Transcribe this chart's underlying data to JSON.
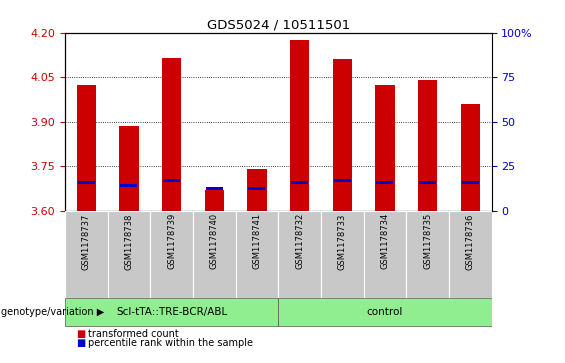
{
  "title": "GDS5024 / 10511501",
  "samples": [
    "GSM1178737",
    "GSM1178738",
    "GSM1178739",
    "GSM1178740",
    "GSM1178741",
    "GSM1178732",
    "GSM1178733",
    "GSM1178734",
    "GSM1178735",
    "GSM1178736"
  ],
  "red_values": [
    4.025,
    3.885,
    4.115,
    3.67,
    3.74,
    4.175,
    4.11,
    4.025,
    4.04,
    3.96
  ],
  "blue_values": [
    3.695,
    3.685,
    3.7,
    3.675,
    3.675,
    3.695,
    3.7,
    3.695,
    3.695,
    3.695
  ],
  "bar_bottom": 3.6,
  "ylim_left": [
    3.6,
    4.2
  ],
  "ylim_right": [
    0,
    100
  ],
  "yticks_left": [
    3.6,
    3.75,
    3.9,
    4.05,
    4.2
  ],
  "yticks_right": [
    0,
    25,
    50,
    75,
    100
  ],
  "grid_values": [
    3.75,
    3.9,
    4.05
  ],
  "groups": [
    {
      "label": "Scl-tTA::TRE-BCR/ABL",
      "start": 0,
      "end": 5
    },
    {
      "label": "control",
      "start": 5,
      "end": 10
    }
  ],
  "bar_color": "#cc0000",
  "blue_color": "#0000cc",
  "bar_width": 0.45,
  "blue_bar_width": 0.4,
  "blue_bar_height": 0.01,
  "left_tick_color": "#cc0000",
  "right_tick_color": "#0000cc",
  "green_color": "#90ee90",
  "gray_color": "#c8c8c8",
  "legend_items": [
    {
      "label": "transformed count",
      "color": "#cc0000"
    },
    {
      "label": "percentile rank within the sample",
      "color": "#0000cc"
    }
  ],
  "genotype_label": "genotype/variation"
}
